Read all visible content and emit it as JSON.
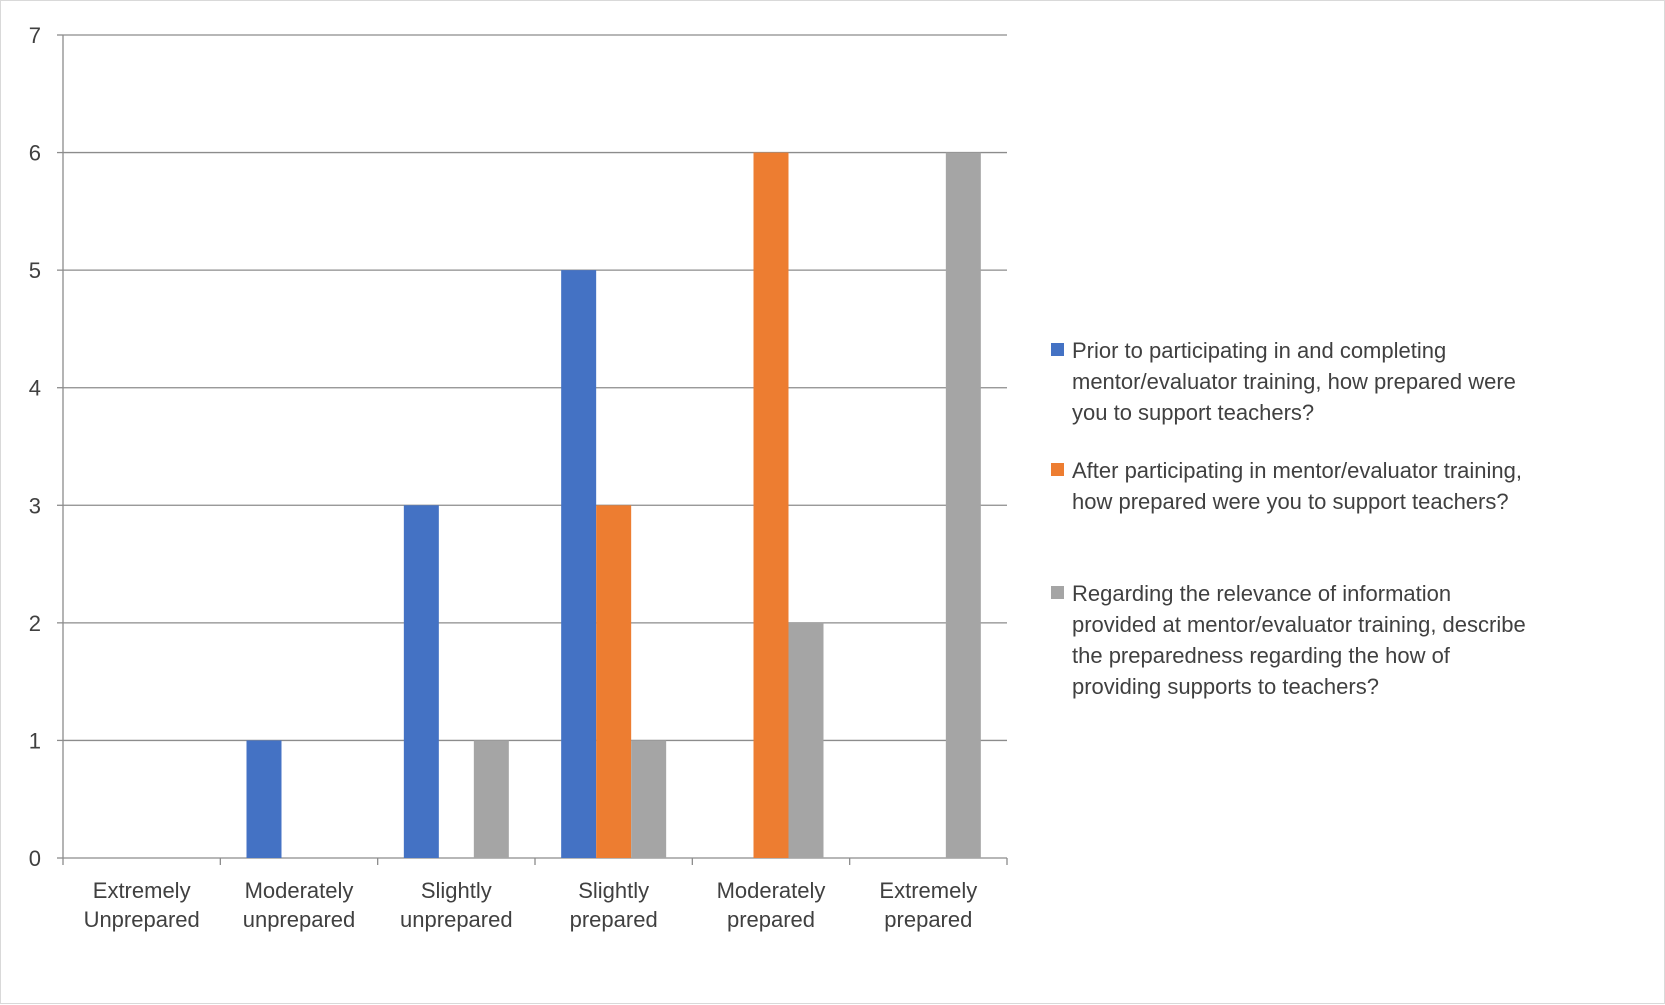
{
  "chart_data": {
    "type": "bar",
    "title": "",
    "xlabel": "",
    "ylabel": "",
    "ylim": [
      0,
      7
    ],
    "yticks": [
      0,
      1,
      2,
      3,
      4,
      5,
      6,
      7
    ],
    "grid": true,
    "legend_position": "right",
    "categories": [
      [
        "Extremely",
        "Unprepared"
      ],
      [
        "Moderately",
        "unprepared"
      ],
      [
        "Slightly",
        "unprepared"
      ],
      [
        "Slightly",
        "prepared"
      ],
      [
        "Moderately",
        "prepared"
      ],
      [
        "Extremely",
        "prepared"
      ]
    ],
    "series": [
      {
        "name": "Prior to participating in and completing mentor/evaluator training, how prepared were you to support teachers?",
        "legend_lines": [
          "Prior to participating in and completing",
          "mentor/evaluator training, how prepared were",
          "you to support teachers?"
        ],
        "color": "#4472c4",
        "values": [
          0,
          1,
          3,
          5,
          0,
          0
        ]
      },
      {
        "name": "After participating in mentor/evaluator training, how prepared were you to support teachers?",
        "legend_lines": [
          "After participating in mentor/evaluator training,",
          "how prepared were you to support teachers?"
        ],
        "color": "#ed7d31",
        "values": [
          0,
          0,
          0,
          3,
          6,
          0
        ]
      },
      {
        "name": "Regarding the relevance of information provided at mentor/evaluator training, describe the preparedness regarding the how of providing supports to teachers?",
        "legend_lines": [
          "Regarding the relevance of information",
          "provided at mentor/evaluator training, describe",
          "the preparedness regarding the how of",
          "providing supports to teachers?"
        ],
        "color": "#a5a5a5",
        "values": [
          0,
          0,
          1,
          1,
          2,
          6
        ]
      }
    ],
    "colors": {
      "gridline": "#8c8c8c",
      "axis": "#8c8c8c",
      "text": "#404040"
    }
  }
}
